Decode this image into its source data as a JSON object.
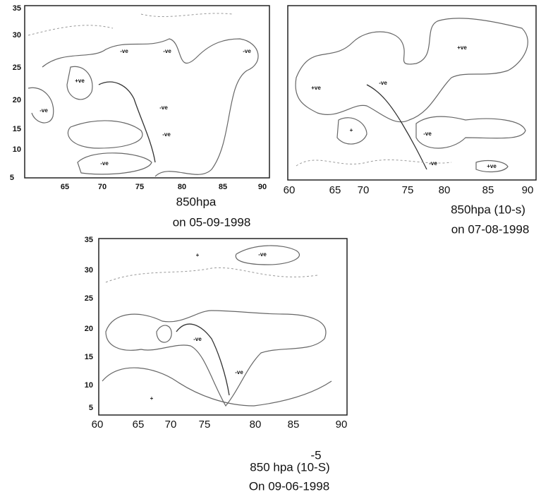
{
  "panels": [
    {
      "yticks": [
        35,
        30,
        25,
        20,
        15,
        10,
        5
      ],
      "xticks": [
        65,
        70,
        75,
        80,
        85,
        90
      ],
      "labels": [
        "-ve",
        "-ve",
        "-ve",
        "+ve",
        "-ve",
        "-ve",
        "-ve",
        "-ve"
      ],
      "caption": [
        "850hpa",
        "on 05-09-1998"
      ]
    },
    {
      "xticks": [
        60,
        65,
        70,
        75,
        80,
        85,
        90
      ],
      "labels": [
        "+ve",
        "+ve",
        "-ve",
        "+",
        "-ve",
        "-ve",
        "+ve"
      ],
      "caption": [
        "850hpa (10-s)",
        "on 07-08-1998"
      ]
    },
    {
      "yticks": [
        35,
        30,
        25,
        20,
        15,
        10,
        5
      ],
      "xticks": [
        60,
        65,
        70,
        75,
        80,
        85,
        90
      ],
      "labels": [
        "-ve",
        "+",
        "-ve",
        "-ve",
        "+"
      ],
      "caption": [
        "-5",
        "850 hpa (10-S)",
        "On 09-06-1998"
      ]
    }
  ]
}
